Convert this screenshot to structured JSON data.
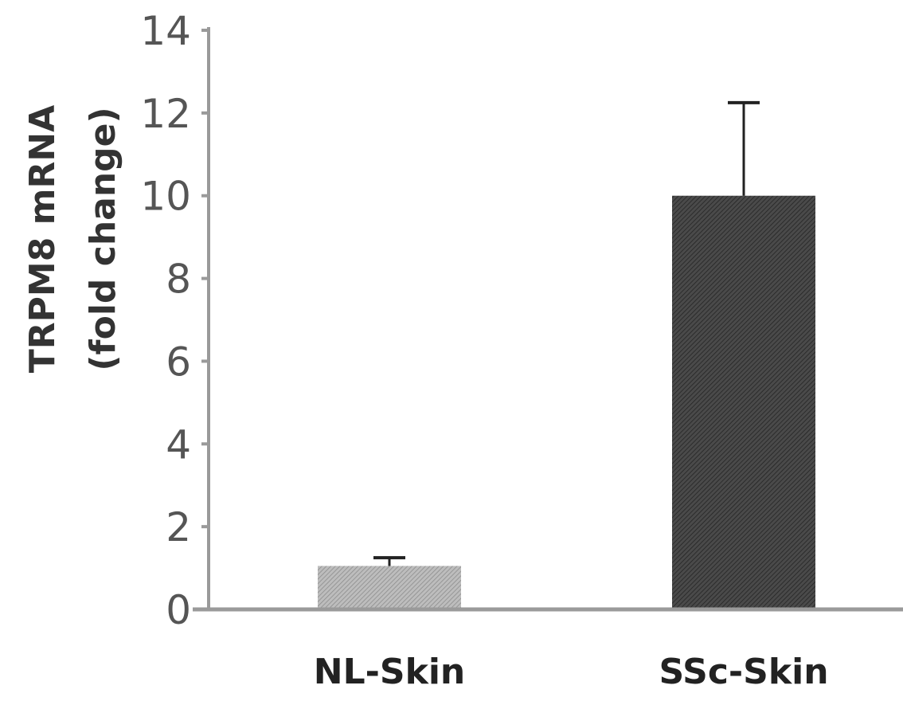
{
  "chart_data": {
    "type": "bar",
    "title": "",
    "xlabel": "",
    "ylabel": [
      "TRPM8 mRNA",
      "(fold change)"
    ],
    "ylim": [
      0,
      14
    ],
    "yticks": [
      0,
      2,
      4,
      6,
      8,
      10,
      12,
      14
    ],
    "categories": [
      "NL-Skin",
      "SSc-Skin"
    ],
    "values": [
      1.05,
      10.0
    ],
    "error_plus": [
      0.2,
      2.25
    ],
    "grid": false,
    "bar_colors": [
      "#a8a8a8",
      "#3c3c3c"
    ],
    "axis_color": "#9a9a9a"
  }
}
